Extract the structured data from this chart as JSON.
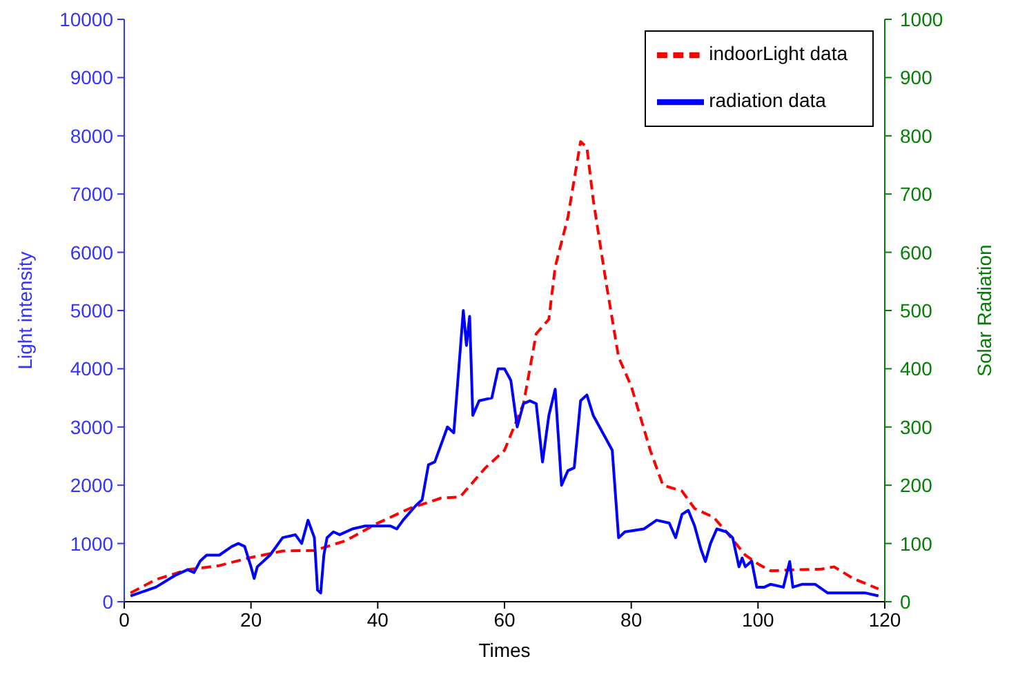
{
  "chart_data": {
    "type": "line",
    "xlabel": "Times",
    "ylabel": "Light intensity",
    "y2label": "Solar Radiation",
    "xlim": [
      0,
      120
    ],
    "xticks": [
      0,
      20,
      40,
      60,
      80,
      100,
      120
    ],
    "ylim": [
      0,
      10000
    ],
    "yticks": [
      0,
      1000,
      2000,
      3000,
      4000,
      5000,
      6000,
      7000,
      8000,
      9000,
      10000
    ],
    "y2lim": [
      0,
      1000
    ],
    "y2ticks": [
      0,
      100,
      200,
      300,
      400,
      500,
      600,
      700,
      800,
      900,
      1000
    ],
    "grid": false,
    "legend": "top right",
    "marker": "none",
    "series": [
      {
        "name": "indoorLight data",
        "color": "#ff0000",
        "line_style": "dashed",
        "x": [
          1,
          5,
          10,
          15,
          20,
          25,
          30,
          35,
          40,
          45,
          50,
          53,
          57,
          60,
          63,
          65,
          67,
          68,
          70,
          72,
          73,
          74,
          76,
          78,
          80,
          83,
          85,
          88,
          90,
          93,
          95,
          98,
          100,
          102,
          106,
          110,
          112,
          115,
          119
        ],
        "values": [
          150,
          380,
          550,
          620,
          760,
          870,
          880,
          1050,
          1350,
          1600,
          1780,
          1800,
          2300,
          2600,
          3400,
          4600,
          4850,
          5750,
          6600,
          7900,
          7800,
          6900,
          5500,
          4200,
          3700,
          2600,
          2000,
          1900,
          1600,
          1450,
          1200,
          800,
          650,
          530,
          550,
          560,
          600,
          400,
          220
        ]
      },
      {
        "name": "radiation data",
        "color": "#0000ff",
        "line_style": "solid",
        "axis": "y2",
        "x": [
          1,
          5,
          8,
          10,
          11,
          12,
          13,
          15,
          17,
          18,
          19,
          20,
          20.5,
          21,
          23,
          25,
          27,
          28,
          29,
          30,
          30.5,
          31,
          31.5,
          32,
          33,
          34,
          36,
          38,
          40,
          42,
          43,
          44,
          46,
          47,
          48,
          49,
          50,
          51,
          52,
          53,
          53.5,
          54,
          54.5,
          55,
          56,
          58,
          59,
          60,
          61,
          62,
          63,
          64,
          65,
          66,
          67,
          68,
          69,
          70,
          71,
          72,
          73,
          74,
          75,
          77,
          78,
          79,
          82,
          84,
          86,
          87,
          88,
          89,
          90,
          91,
          91.7,
          92.5,
          93.5,
          95,
          96,
          97,
          97.5,
          98,
          99,
          99.8,
          101,
          102,
          104,
          105,
          105.5,
          107,
          109,
          111,
          115,
          117,
          119
        ],
        "values": [
          10,
          25,
          45,
          55,
          50,
          70,
          80,
          80,
          95,
          100,
          95,
          60,
          40,
          60,
          80,
          110,
          115,
          100,
          140,
          110,
          20,
          15,
          80,
          110,
          120,
          115,
          125,
          130,
          130,
          130,
          125,
          140,
          165,
          175,
          235,
          240,
          270,
          300,
          290,
          430,
          500,
          440,
          490,
          320,
          345,
          350,
          400,
          400,
          380,
          300,
          340,
          345,
          340,
          240,
          320,
          365,
          200,
          225,
          230,
          345,
          355,
          320,
          300,
          260,
          110,
          120,
          125,
          140,
          135,
          110,
          150,
          157,
          130,
          90,
          69,
          100,
          125,
          120,
          110,
          60,
          75,
          60,
          70,
          25,
          25,
          30,
          25,
          69,
          25,
          30,
          30,
          15,
          15,
          15,
          10
        ]
      }
    ]
  }
}
